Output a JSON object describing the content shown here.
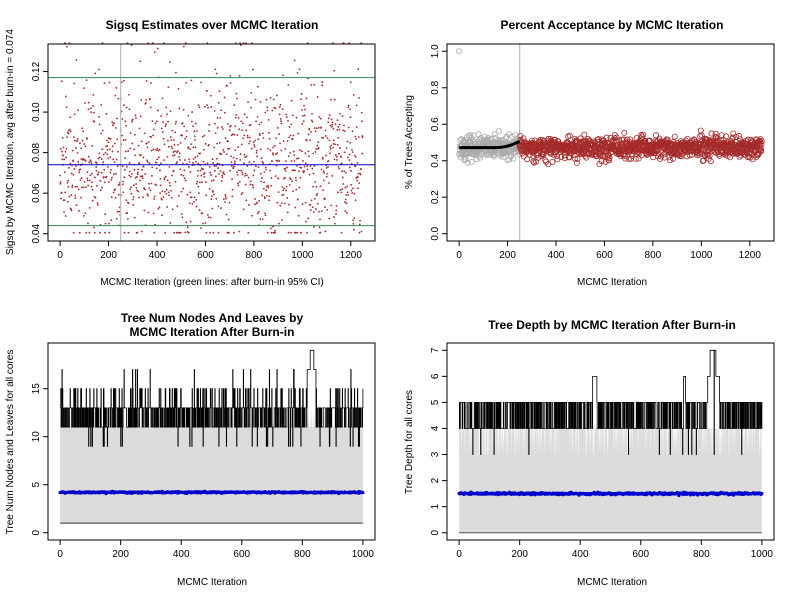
{
  "chart_data": [
    {
      "id": "sigsq",
      "type": "scatter",
      "title": "Sigsq Estimates over MCMC Iteration",
      "xlabel": "MCMC Iteration (green lines: after burn-in 95% CI)",
      "ylabel": "Sigsq by MCMC Iteration, avg after burn-in = 0.074",
      "xlim": [
        0,
        1250
      ],
      "ylim": [
        0.04,
        0.13
      ],
      "x_ticks": [
        0,
        200,
        400,
        600,
        800,
        1000,
        1200
      ],
      "y_ticks": [
        0.04,
        0.06,
        0.08,
        0.1,
        0.12
      ],
      "y_tick_labels": [
        "0.04",
        "0.06",
        "0.08",
        "0.10",
        "0.12"
      ],
      "n_iterations": 1250,
      "burn_in": 250,
      "avg_after_burn_in": 0.074,
      "ci_95": [
        0.044,
        0.117
      ],
      "colors": {
        "points": "#a52a2a",
        "avg_line": "#0000cd",
        "ci_lines": "#2e8b57",
        "burnin_line": "#bbbbbb"
      }
    },
    {
      "id": "acceptance",
      "type": "scatter",
      "title": "Percent Acceptance by MCMC Iteration",
      "xlabel": "MCMC Iteration",
      "ylabel": "% of Trees Accepting",
      "xlim": [
        0,
        1250
      ],
      "ylim": [
        0,
        1
      ],
      "x_ticks": [
        0,
        200,
        400,
        600,
        800,
        1000,
        1200
      ],
      "y_ticks": [
        0,
        0.2,
        0.4,
        0.6,
        0.8,
        1
      ],
      "y_tick_labels": [
        "0.0",
        "0.2",
        "0.4",
        "0.6",
        "0.8",
        "1.0"
      ],
      "n_iterations": 1250,
      "burn_in": 250,
      "first_value": 1.0,
      "mean_acceptance": 0.47,
      "colors": {
        "burnin_points": "#aaaaaa",
        "post_points": "#a52a2a",
        "smooth_line": "#000000",
        "burnin_line": "#bbbbbb"
      }
    },
    {
      "id": "nodes",
      "type": "line",
      "title": "Tree Num Nodes And Leaves by\nMCMC Iteration After Burn-in",
      "xlabel": "MCMC Iteration",
      "ylabel": "Tree Num Nodes and Leaves for all cores",
      "xlim": [
        0,
        1000
      ],
      "ylim": [
        0,
        19
      ],
      "x_ticks": [
        0,
        200,
        400,
        600,
        800,
        1000
      ],
      "y_ticks": [
        0,
        5,
        10,
        15
      ],
      "y_tick_labels": [
        "0",
        "5",
        "10",
        "15"
      ],
      "n_iterations": 1000,
      "min_line": 1,
      "mean_line": 4.2,
      "max_peak": 19,
      "colors": {
        "band": "#dcdcdc",
        "max_line": "#000000",
        "mean_points": "#0000cd",
        "min_line": "#333333"
      }
    },
    {
      "id": "depth",
      "type": "line",
      "title": "Tree Depth by MCMC Iteration After Burn-in",
      "xlabel": "MCMC Iteration",
      "ylabel": "Tree Depth for all cores",
      "xlim": [
        0,
        1000
      ],
      "ylim": [
        0,
        7
      ],
      "x_ticks": [
        0,
        200,
        400,
        600,
        800,
        1000
      ],
      "y_ticks": [
        0,
        1,
        2,
        3,
        4,
        5,
        6,
        7
      ],
      "y_tick_labels": [
        "0",
        "1",
        "2",
        "3",
        "4",
        "5",
        "6",
        "7"
      ],
      "n_iterations": 1000,
      "min_line": 0,
      "mean_line": 1.5,
      "max_peak": 7,
      "colors": {
        "band": "#dcdcdc",
        "max_line": "#000000",
        "mean_points": "#0000cd",
        "min_line": "#555555"
      }
    }
  ]
}
